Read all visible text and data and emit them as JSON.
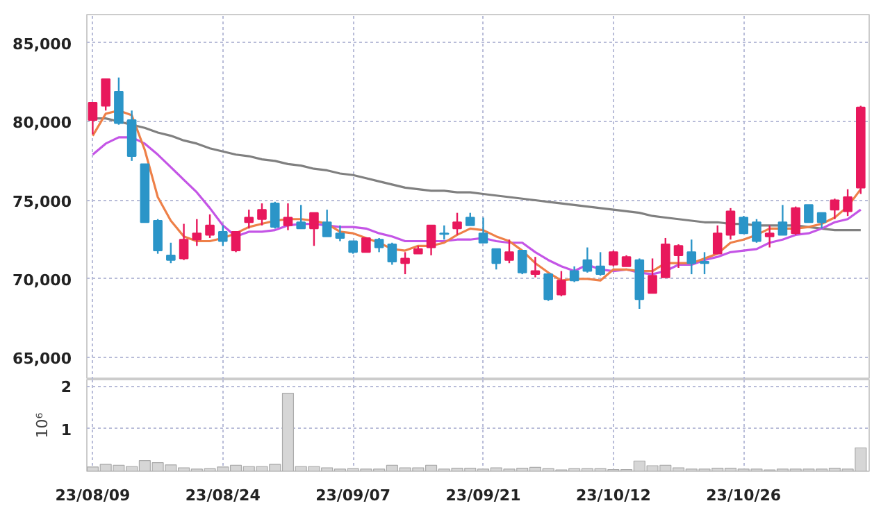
{
  "chart_data": [
    {
      "type": "candlestick",
      "categories": [
        null,
        null,
        null,
        null,
        null,
        null,
        null,
        null,
        null,
        null,
        null,
        null,
        null,
        null,
        null,
        null,
        null,
        null,
        null,
        null,
        null,
        null,
        null,
        null,
        null,
        null,
        null,
        null,
        null,
        null,
        null,
        null,
        null,
        null,
        null,
        null,
        null,
        null,
        null,
        null,
        null,
        null,
        null,
        null,
        null,
        null,
        null,
        null,
        null,
        null,
        null,
        null,
        null,
        null,
        null,
        null,
        null,
        null,
        null,
        null
      ],
      "ohlc": [
        [
          80100,
          81200,
          79200,
          81200
        ],
        [
          81000,
          82700,
          80700,
          82700
        ],
        [
          81900,
          82800,
          79800,
          79900
        ],
        [
          80100,
          80700,
          77500,
          77800
        ],
        [
          77300,
          77300,
          73600,
          73600
        ],
        [
          73700,
          73800,
          71600,
          71800
        ],
        [
          71500,
          72300,
          71000,
          71200
        ],
        [
          71300,
          73500,
          71200,
          72500
        ],
        [
          72500,
          73800,
          72100,
          72900
        ],
        [
          72800,
          74100,
          72600,
          73400
        ],
        [
          73000,
          73400,
          72100,
          72400
        ],
        [
          71800,
          73000,
          71700,
          73000
        ],
        [
          73600,
          74400,
          73200,
          73900
        ],
        [
          73800,
          74800,
          73400,
          74400
        ],
        [
          74800,
          74900,
          73200,
          73300
        ],
        [
          73400,
          74800,
          73100,
          73900
        ],
        [
          73600,
          74700,
          73200,
          73200
        ],
        [
          73200,
          74200,
          72100,
          74200
        ],
        [
          73600,
          74400,
          72700,
          72700
        ],
        [
          72900,
          73400,
          72400,
          72600
        ],
        [
          72400,
          72400,
          71600,
          71700
        ],
        [
          71700,
          72600,
          71700,
          72600
        ],
        [
          72500,
          72600,
          71700,
          72000
        ],
        [
          72200,
          72300,
          70900,
          71100
        ],
        [
          71000,
          71700,
          70300,
          71300
        ],
        [
          71600,
          72100,
          71600,
          71900
        ],
        [
          72000,
          73400,
          71500,
          73400
        ],
        [
          72900,
          73400,
          72500,
          72850
        ],
        [
          73200,
          74200,
          72800,
          73600
        ],
        [
          73900,
          74200,
          73400,
          73400
        ],
        [
          72900,
          73900,
          72300,
          72300
        ],
        [
          71900,
          71900,
          70600,
          71000
        ],
        [
          71200,
          72500,
          71000,
          71700
        ],
        [
          71800,
          71800,
          70300,
          70400
        ],
        [
          70300,
          71400,
          70100,
          70500
        ],
        [
          70300,
          70300,
          68600,
          68700
        ],
        [
          69000,
          70500,
          68900,
          69900
        ],
        [
          70500,
          70800,
          69800,
          69900
        ],
        [
          71200,
          72000,
          70400,
          70500
        ],
        [
          70800,
          71700,
          70200,
          70300
        ],
        [
          70900,
          71800,
          70800,
          71700
        ],
        [
          70800,
          71500,
          70800,
          71400
        ],
        [
          71200,
          71300,
          68100,
          68700
        ],
        [
          69100,
          71300,
          69100,
          70200
        ],
        [
          70100,
          72600,
          70100,
          72200
        ],
        [
          71500,
          72200,
          70700,
          72100
        ],
        [
          71700,
          72500,
          70300,
          71000
        ],
        [
          71100,
          71700,
          70300,
          71000
        ],
        [
          71600,
          73400,
          71600,
          72900
        ],
        [
          72800,
          74500,
          72500,
          74300
        ],
        [
          73900,
          74000,
          72900,
          72900
        ],
        [
          73600,
          73800,
          72300,
          72400
        ],
        [
          72700,
          73400,
          72000,
          72900
        ],
        [
          73600,
          74700,
          72800,
          72800
        ],
        [
          72900,
          74600,
          72800,
          74500
        ],
        [
          74700,
          74700,
          73600,
          73600
        ],
        [
          74200,
          74200,
          73200,
          73600
        ],
        [
          74400,
          75100,
          73800,
          75000
        ],
        [
          74300,
          75700,
          74000,
          75200
        ],
        [
          75800,
          81000,
          75400,
          80900
        ]
      ],
      "colors": [
        "#e8185c",
        "#e8185c",
        "#2b95c8",
        "#2b95c8",
        "#2b95c8",
        "#2b95c8",
        "#2b95c8",
        "#e8185c",
        "#e8185c",
        "#e8185c",
        "#2b95c8",
        "#e8185c",
        "#e8185c",
        "#e8185c",
        "#2b95c8",
        "#e8185c",
        "#2b95c8",
        "#e8185c",
        "#2b95c8",
        "#2b95c8",
        "#2b95c8",
        "#e8185c",
        "#2b95c8",
        "#2b95c8",
        "#e8185c",
        "#e8185c",
        "#e8185c",
        "#2b95c8",
        "#e8185c",
        "#2b95c8",
        "#2b95c8",
        "#2b95c8",
        "#e8185c",
        "#2b95c8",
        "#e8185c",
        "#2b95c8",
        "#e8185c",
        "#2b95c8",
        "#2b95c8",
        "#2b95c8",
        "#e8185c",
        "#e8185c",
        "#2b95c8",
        "#e8185c",
        "#e8185c",
        "#e8185c",
        "#2b95c8",
        "#2b95c8",
        "#e8185c",
        "#e8185c",
        "#2b95c8",
        "#2b95c8",
        "#e8185c",
        "#2b95c8",
        "#e8185c",
        "#2b95c8",
        "#2b95c8",
        "#e8185c",
        "#e8185c",
        "#e8185c"
      ],
      "series": [
        {
          "type": "line",
          "color": "#808080",
          "values": [
            80200,
            80200,
            80000,
            79800,
            79600,
            79300,
            79100,
            78800,
            78600,
            78300,
            78100,
            77900,
            77800,
            77600,
            77500,
            77300,
            77200,
            77000,
            76900,
            76700,
            76600,
            76400,
            76200,
            76000,
            75800,
            75700,
            75600,
            75600,
            75500,
            75500,
            75400,
            75300,
            75200,
            75100,
            75000,
            74900,
            74800,
            74700,
            74600,
            74500,
            74400,
            74300,
            74200,
            74000,
            73900,
            73800,
            73700,
            73600,
            73600,
            73500,
            73500,
            73400,
            73400,
            73400,
            73400,
            73300,
            73200,
            73100,
            73100,
            73100
          ]
        },
        {
          "type": "line",
          "color": "#c455e6",
          "values": [
            77900,
            78600,
            79000,
            79000,
            78600,
            77900,
            77100,
            76300,
            75500,
            74500,
            73400,
            72700,
            73000,
            73000,
            73100,
            73400,
            73500,
            73500,
            73400,
            73300,
            73300,
            73200,
            72900,
            72700,
            72400,
            72400,
            72400,
            72400,
            72500,
            72500,
            72600,
            72400,
            72300,
            72300,
            71700,
            71200,
            70800,
            70500,
            70900,
            70600,
            70500,
            70600,
            70400,
            70300,
            70500,
            70900,
            70900,
            71200,
            71400,
            71700,
            71800,
            71900,
            72300,
            72500,
            72800,
            72900,
            73200,
            73600,
            73800,
            74400
          ]
        },
        {
          "type": "line",
          "color": "#ee8048",
          "values": [
            79100,
            80500,
            80700,
            80400,
            78200,
            75200,
            73700,
            72700,
            72400,
            72400,
            72600,
            72900,
            73300,
            73500,
            73700,
            73800,
            73800,
            73700,
            73500,
            73000,
            72900,
            72600,
            72300,
            71900,
            71800,
            72100,
            72100,
            72300,
            72800,
            73200,
            73100,
            72700,
            72400,
            71800,
            71000,
            70400,
            69900,
            70000,
            70000,
            69900,
            70600,
            70600,
            70500,
            70500,
            71000,
            71000,
            71000,
            71300,
            71600,
            72300,
            72500,
            72800,
            73200,
            73200,
            73200,
            73300,
            73500,
            73900,
            74600,
            75700
          ]
        }
      ],
      "ylim": [
        63600,
        86800
      ],
      "yticks": [
        {
          "value": 65000,
          "label": "65,000"
        },
        {
          "value": 70000,
          "label": "70,000"
        },
        {
          "value": 75000,
          "label": "75,000"
        },
        {
          "value": 80000,
          "label": "80,000"
        },
        {
          "value": 85000,
          "label": "85,000"
        }
      ],
      "grid": true,
      "tick_labels": "y"
    },
    {
      "type": "bar",
      "categories": [
        "23/08/09",
        null,
        null,
        null,
        null,
        null,
        null,
        null,
        null,
        null,
        "23/08/24",
        null,
        null,
        null,
        null,
        null,
        null,
        null,
        null,
        null,
        "23/09/07",
        null,
        null,
        null,
        null,
        null,
        null,
        null,
        null,
        null,
        "23/09/21",
        null,
        null,
        null,
        null,
        null,
        null,
        null,
        null,
        null,
        "23/10/12",
        null,
        null,
        null,
        null,
        null,
        null,
        null,
        null,
        null,
        "23/10/26",
        null,
        null,
        null,
        null,
        null,
        null,
        null,
        null,
        null
      ],
      "values": [
        0.1,
        0.16,
        0.14,
        0.11,
        0.25,
        0.2,
        0.15,
        0.08,
        0.05,
        0.06,
        0.1,
        0.14,
        0.11,
        0.11,
        0.16,
        1.83,
        0.11,
        0.11,
        0.08,
        0.05,
        0.06,
        0.05,
        0.05,
        0.14,
        0.08,
        0.08,
        0.14,
        0.05,
        0.07,
        0.07,
        0.05,
        0.08,
        0.05,
        0.07,
        0.09,
        0.06,
        0.03,
        0.06,
        0.06,
        0.06,
        0.04,
        0.04,
        0.24,
        0.13,
        0.14,
        0.08,
        0.05,
        0.05,
        0.07,
        0.07,
        0.05,
        0.05,
        0.03,
        0.05,
        0.05,
        0.05,
        0.05,
        0.07,
        0.05,
        0.55
      ],
      "color": "#d6d6d6",
      "ylabel": "10⁶",
      "ylim": [
        0,
        2.15
      ],
      "yticks": [
        1,
        2
      ],
      "grid": true
    }
  ]
}
